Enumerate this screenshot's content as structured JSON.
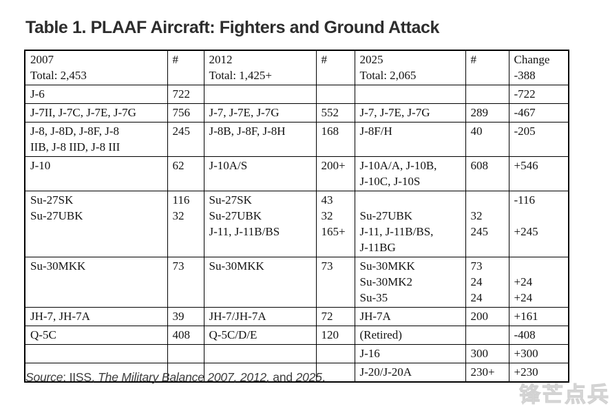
{
  "title": "Table 1. PLAAF Aircraft: Fighters and Ground Attack",
  "table": {
    "header": [
      "2007\nTotal: 2,453",
      "#",
      "2012\nTotal: 1,425+",
      "#",
      "2025\nTotal: 2,065",
      "#",
      "Change\n-388"
    ],
    "rows": [
      [
        "J-6",
        "722",
        "",
        "",
        "",
        "",
        "-722"
      ],
      [
        "J-7II, J-7C, J-7E, J-7G",
        "756",
        "J-7, J-7E, J-7G",
        "552",
        "J-7, J-7E, J-7G",
        "289",
        "-467"
      ],
      [
        "J-8, J-8D, J-8F, J-8\nIIB, J-8 IID, J-8 III",
        "245",
        "J-8B, J-8F, J-8H",
        "168",
        "J-8F/H",
        "40",
        "-205"
      ],
      [
        "J-10",
        "62",
        "J-10A/S",
        "200+",
        "J-10A/A, J-10B,\nJ-10C, J-10S",
        "608",
        "+546"
      ],
      [
        "Su-27SK\nSu-27UBK",
        "116\n32",
        "Su-27SK\nSu-27UBK\nJ-11, J-11B/BS",
        "43\n32\n165+",
        "\nSu-27UBK\nJ-11, J-11B/BS,\nJ-11BG",
        "\n32\n245",
        "-116\n\n+245"
      ],
      [
        "Su-30MKK",
        "73",
        "Su-30MKK",
        "73",
        "Su-30MKK\nSu-30MK2\nSu-35",
        "73\n24\n24",
        "\n+24\n+24"
      ],
      [
        "JH-7, JH-7A",
        "39",
        "JH-7/JH-7A",
        "72",
        "JH-7A",
        "200",
        "+161"
      ],
      [
        "Q-5C",
        "408",
        "Q-5C/D/E",
        "120",
        "(Retired)",
        "",
        "-408"
      ],
      [
        "",
        "",
        "",
        "",
        "J-16",
        "300",
        "+300"
      ],
      [
        "",
        "",
        "",
        "",
        "J-20/J-20A",
        "230+",
        "+230"
      ]
    ]
  },
  "source": {
    "segments": [
      {
        "text": "Source",
        "italic": true
      },
      {
        "text": ": IISS, ",
        "italic": false
      },
      {
        "text": "The Military Balance 2007, 2012,",
        "italic": true
      },
      {
        "text": " and ",
        "italic": false
      },
      {
        "text": "2025",
        "italic": true
      },
      {
        "text": ".",
        "italic": false
      }
    ]
  },
  "watermark": "锋芒点兵",
  "colors": {
    "title_text": "#2d2d2d",
    "table_text": "#121212",
    "table_border": "#000000",
    "source_text": "#3d3d3d",
    "watermark": "#d9d9d9",
    "background": "#ffffff"
  }
}
